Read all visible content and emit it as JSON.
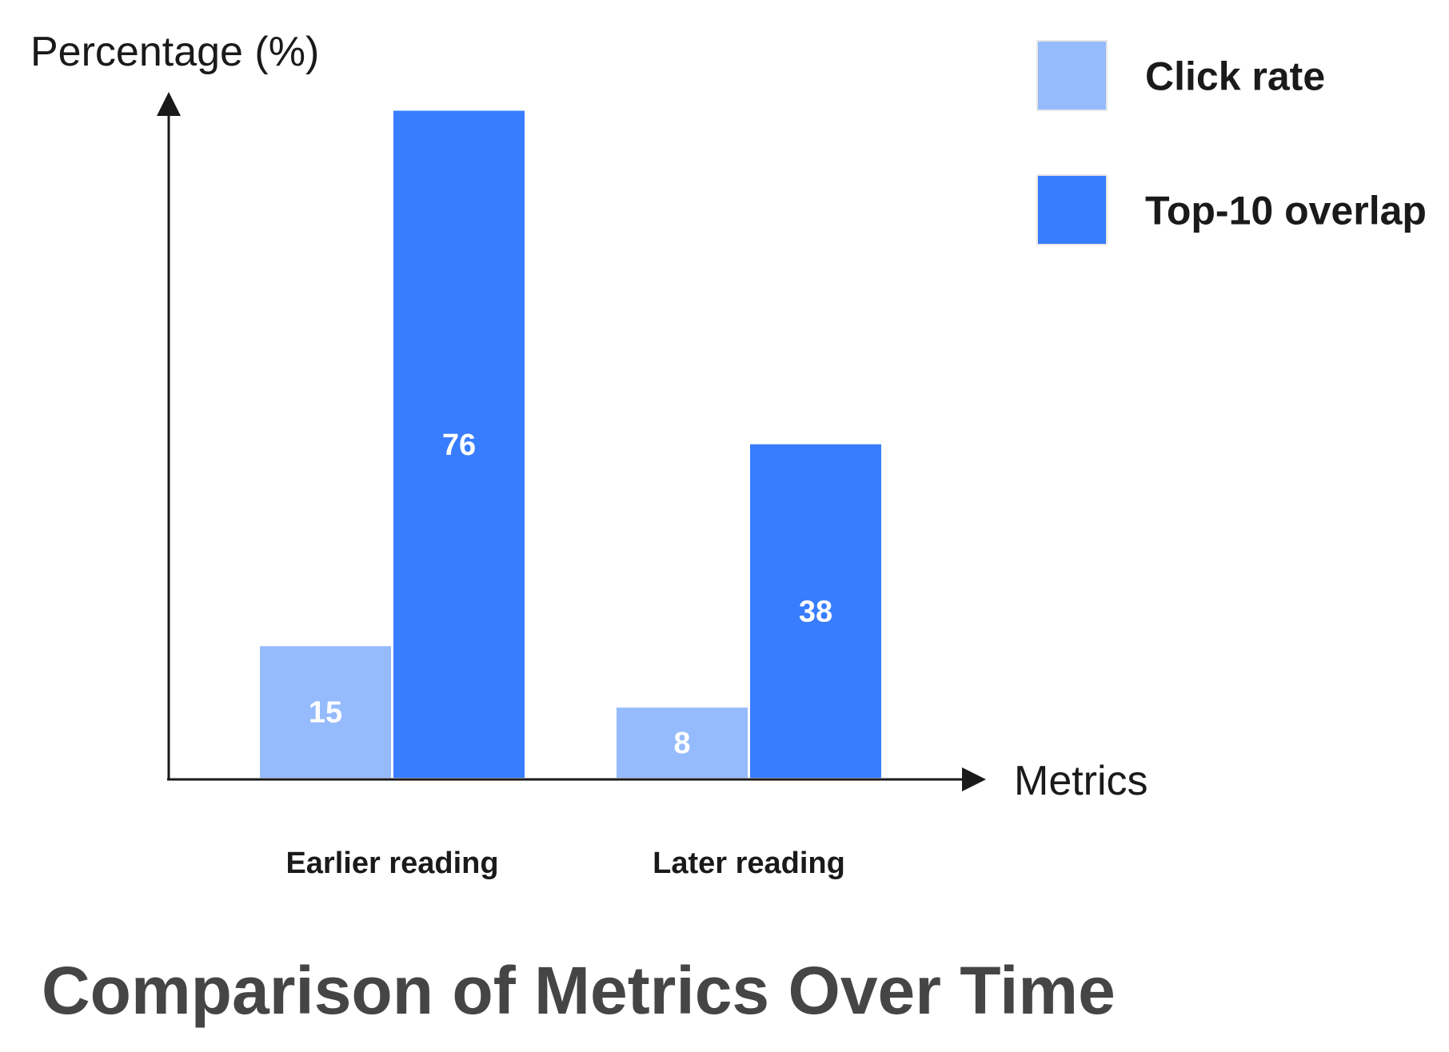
{
  "chart_data": {
    "type": "bar",
    "title": "Comparison of Metrics Over Time",
    "xlabel": "Metrics",
    "ylabel": "Percentage (%)",
    "categories": [
      "Earlier reading",
      "Later reading"
    ],
    "series": [
      {
        "name": "Click rate",
        "values": [
          15,
          8
        ],
        "color": "#96bbfd"
      },
      {
        "name": "Top-10 overlap",
        "values": [
          76,
          38
        ],
        "color": "#387dfd"
      }
    ],
    "ylim": [
      0,
      100
    ],
    "grid": false,
    "legend_position": "top-right",
    "data_labels": true
  }
}
